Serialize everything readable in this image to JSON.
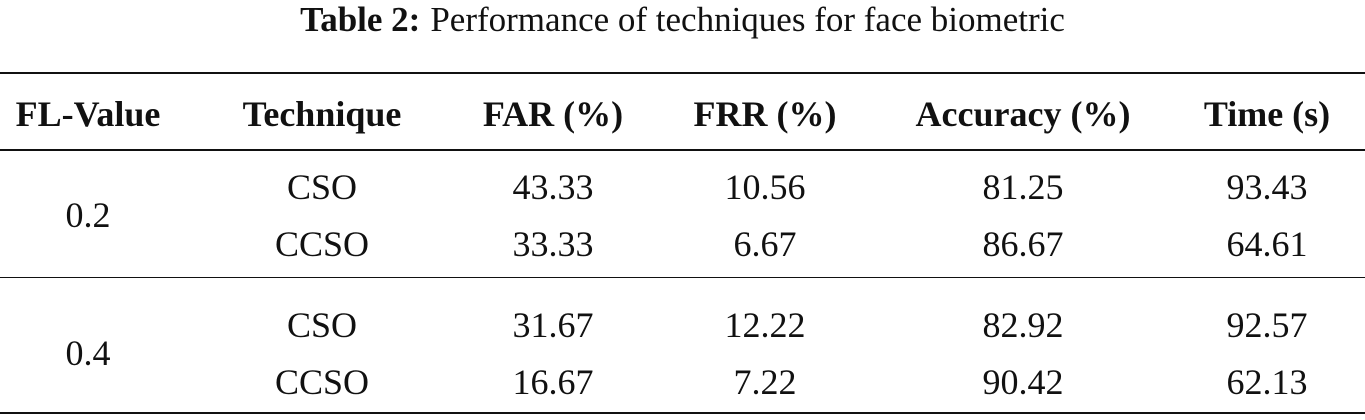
{
  "caption": {
    "label": "Table 2:",
    "text": "Performance of techniques for face biometric"
  },
  "table": {
    "headers": [
      "FL-Value",
      "Technique",
      "FAR (%)",
      "FRR (%)",
      "Accuracy (%)",
      "Time (s)"
    ],
    "groups": [
      {
        "fl_value": "0.2",
        "rows": [
          [
            "CSO",
            "43.33",
            "10.56",
            "81.25",
            "93.43"
          ],
          [
            "CCSO",
            "33.33",
            "6.67",
            "86.67",
            "64.61"
          ]
        ]
      },
      {
        "fl_value": "0.4",
        "rows": [
          [
            "CSO",
            "31.67",
            "12.22",
            "82.92",
            "92.57"
          ],
          [
            "CCSO",
            "16.67",
            "7.22",
            "90.42",
            "62.13"
          ]
        ]
      }
    ]
  }
}
